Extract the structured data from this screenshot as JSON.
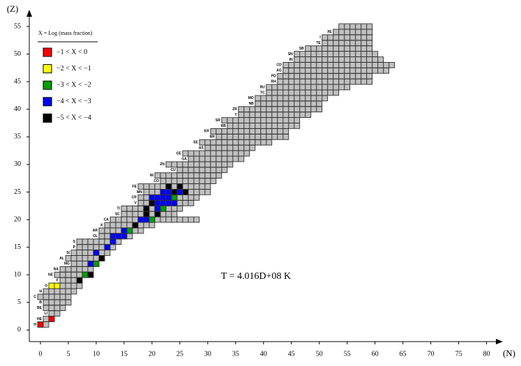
{
  "chart_data": {
    "type": "nuclide",
    "x_label": "(N)",
    "y_label": "(Z)",
    "annotation": "T = 4.016D+08 K",
    "xlim": [
      -2,
      82.8
    ],
    "ylim": [
      -2.1,
      57.9
    ],
    "xticks": [
      0,
      5,
      10,
      15,
      20,
      25,
      30,
      35,
      40,
      45,
      50,
      55,
      60,
      65,
      70,
      75,
      80
    ],
    "yticks": [
      0,
      5,
      10,
      15,
      20,
      25,
      30,
      35,
      40,
      45,
      50,
      55
    ],
    "cell_color": "#c0c0c0",
    "legend": {
      "title": "X = Log (mass fraction)",
      "entries": [
        {
          "label": "−1 < X < 0",
          "color": "#ff0000"
        },
        {
          "label": "−2 < X < −1",
          "color": "#ffff00"
        },
        {
          "label": "−3 < X < −2",
          "color": "#00a000"
        },
        {
          "label": "−4 < X < −3",
          "color": "#0000ff"
        },
        {
          "label": "−5 < X < −4",
          "color": "#000000"
        }
      ]
    },
    "rows": [
      [
        1,
        0,
        1
      ],
      [
        2,
        1,
        2
      ],
      [
        3,
        2,
        3
      ],
      [
        4,
        1,
        4
      ],
      [
        5,
        1,
        5
      ],
      [
        6,
        0,
        5
      ],
      [
        7,
        1,
        6
      ],
      [
        8,
        2,
        7
      ],
      [
        9,
        4,
        7
      ],
      [
        10,
        3,
        8
      ],
      [
        11,
        4,
        9
      ],
      [
        12,
        6,
        10
      ],
      [
        13,
        5,
        11
      ],
      [
        14,
        6,
        12
      ],
      [
        15,
        7,
        13
      ],
      [
        16,
        7,
        14
      ],
      [
        17,
        11,
        16
      ],
      [
        18,
        11,
        18
      ],
      [
        19,
        12,
        20
      ],
      [
        20,
        13,
        28
      ],
      [
        21,
        15,
        24
      ],
      [
        22,
        15,
        25
      ],
      [
        23,
        18,
        27
      ],
      [
        24,
        18,
        28
      ],
      [
        25,
        19,
        30
      ],
      [
        26,
        18,
        30
      ],
      [
        27,
        22,
        31
      ],
      [
        28,
        21,
        32
      ],
      [
        29,
        25,
        33
      ],
      [
        30,
        23,
        34
      ],
      [
        31,
        27,
        36
      ],
      [
        32,
        26,
        37
      ],
      [
        33,
        30,
        38
      ],
      [
        34,
        29,
        41
      ],
      [
        35,
        32,
        44
      ],
      [
        36,
        31,
        44
      ],
      [
        37,
        34,
        46
      ],
      [
        38,
        33,
        46
      ],
      [
        39,
        36,
        48
      ],
      [
        40,
        36,
        50
      ],
      [
        41,
        39,
        50
      ],
      [
        42,
        39,
        51
      ],
      [
        43,
        41,
        53
      ],
      [
        44,
        41,
        55
      ],
      [
        45,
        43,
        59
      ],
      [
        46,
        43,
        59
      ],
      [
        47,
        44,
        62
      ],
      [
        48,
        44,
        63
      ],
      [
        49,
        46,
        61
      ],
      [
        50,
        46,
        60
      ],
      [
        51,
        48,
        59
      ],
      [
        52,
        51,
        59
      ],
      [
        53,
        51,
        59
      ],
      [
        54,
        53,
        59
      ],
      [
        55,
        54,
        59
      ]
    ],
    "cells": [
      {
        "n": 0,
        "z": 1,
        "class": 0
      },
      {
        "n": 2,
        "z": 2,
        "class": 0
      },
      {
        "n": 2,
        "z": 8,
        "class": 1
      },
      {
        "n": 3,
        "z": 8,
        "class": 1
      },
      {
        "n": 8,
        "z": 10,
        "class": 2
      },
      {
        "n": 10,
        "z": 12,
        "class": 2
      },
      {
        "n": 16,
        "z": 18,
        "class": 2
      },
      {
        "n": 20,
        "z": 20,
        "class": 2
      },
      {
        "n": 22,
        "z": 22,
        "class": 2
      },
      {
        "n": 24,
        "z": 24,
        "class": 2
      },
      {
        "n": 9,
        "z": 12,
        "class": 3
      },
      {
        "n": 10,
        "z": 14,
        "class": 3
      },
      {
        "n": 12,
        "z": 15,
        "class": 3
      },
      {
        "n": 13,
        "z": 16,
        "class": 3
      },
      {
        "n": 14,
        "z": 17,
        "class": 3
      },
      {
        "n": 15,
        "z": 17,
        "class": 3
      },
      {
        "n": 15,
        "z": 18,
        "class": 3
      },
      {
        "n": 13,
        "z": 17,
        "class": 3
      },
      {
        "n": 18,
        "z": 20,
        "class": 3
      },
      {
        "n": 19,
        "z": 20,
        "class": 3
      },
      {
        "n": 21,
        "z": 22,
        "class": 3
      },
      {
        "n": 21,
        "z": 23,
        "class": 3
      },
      {
        "n": 22,
        "z": 23,
        "class": 3
      },
      {
        "n": 23,
        "z": 23,
        "class": 3
      },
      {
        "n": 20,
        "z": 24,
        "class": 3
      },
      {
        "n": 21,
        "z": 24,
        "class": 3
      },
      {
        "n": 22,
        "z": 24,
        "class": 3
      },
      {
        "n": 23,
        "z": 24,
        "class": 3
      },
      {
        "n": 22,
        "z": 25,
        "class": 3
      },
      {
        "n": 23,
        "z": 25,
        "class": 3
      },
      {
        "n": 25,
        "z": 25,
        "class": 3
      },
      {
        "n": 24,
        "z": 23,
        "class": 3
      },
      {
        "n": 9,
        "z": 10,
        "class": 4
      },
      {
        "n": 7,
        "z": 9,
        "class": 4
      },
      {
        "n": 11,
        "z": 13,
        "class": 4
      },
      {
        "n": 17,
        "z": 19,
        "class": 4
      },
      {
        "n": 19,
        "z": 22,
        "class": 4
      },
      {
        "n": 20,
        "z": 23,
        "class": 4
      },
      {
        "n": 23,
        "z": 26,
        "class": 4
      },
      {
        "n": 25,
        "z": 26,
        "class": 4
      },
      {
        "n": 26,
        "z": 25,
        "class": 4
      },
      {
        "n": 24,
        "z": 25,
        "class": 4
      },
      {
        "n": 19,
        "z": 21,
        "class": 4
      },
      {
        "n": 21,
        "z": 21,
        "class": 4
      }
    ],
    "elements": [
      {
        "symbol": "H",
        "z": 1
      },
      {
        "symbol": "HE",
        "z": 2
      },
      {
        "symbol": "LI",
        "z": 3
      },
      {
        "symbol": "BE",
        "z": 4
      },
      {
        "symbol": "B",
        "z": 5
      },
      {
        "symbol": "C",
        "z": 6
      },
      {
        "symbol": "N",
        "z": 7
      },
      {
        "symbol": "O",
        "z": 8
      },
      {
        "symbol": "F",
        "z": 9
      },
      {
        "symbol": "NE",
        "z": 10
      },
      {
        "symbol": "NA",
        "z": 11
      },
      {
        "symbol": "MG",
        "z": 12
      },
      {
        "symbol": "AL",
        "z": 13
      },
      {
        "symbol": "SI",
        "z": 14
      },
      {
        "symbol": "P",
        "z": 15
      },
      {
        "symbol": "S",
        "z": 16
      },
      {
        "symbol": "CL",
        "z": 17
      },
      {
        "symbol": "AR",
        "z": 18
      },
      {
        "symbol": "K",
        "z": 19
      },
      {
        "symbol": "CA",
        "z": 20
      },
      {
        "symbol": "SC",
        "z": 21
      },
      {
        "symbol": "TI",
        "z": 22
      },
      {
        "symbol": "V",
        "z": 23
      },
      {
        "symbol": "CR",
        "z": 24
      },
      {
        "symbol": "MN",
        "z": 25
      },
      {
        "symbol": "FE",
        "z": 26
      },
      {
        "symbol": "CO",
        "z": 27
      },
      {
        "symbol": "NI",
        "z": 28
      },
      {
        "symbol": "CU",
        "z": 29
      },
      {
        "symbol": "ZN",
        "z": 30
      },
      {
        "symbol": "GA",
        "z": 31
      },
      {
        "symbol": "GE",
        "z": 32
      },
      {
        "symbol": "AS",
        "z": 33
      },
      {
        "symbol": "SE",
        "z": 34
      },
      {
        "symbol": "BR",
        "z": 35
      },
      {
        "symbol": "KR",
        "z": 36
      },
      {
        "symbol": "RB",
        "z": 37
      },
      {
        "symbol": "SR",
        "z": 38
      },
      {
        "symbol": "Y",
        "z": 39
      },
      {
        "symbol": "ZR",
        "z": 40
      },
      {
        "symbol": "NB",
        "z": 41
      },
      {
        "symbol": "MO",
        "z": 42
      },
      {
        "symbol": "TC",
        "z": 43
      },
      {
        "symbol": "RU",
        "z": 44
      },
      {
        "symbol": "RH",
        "z": 45
      },
      {
        "symbol": "PD",
        "z": 46
      },
      {
        "symbol": "AG",
        "z": 47
      },
      {
        "symbol": "CD",
        "z": 48
      },
      {
        "symbol": "IN",
        "z": 49
      },
      {
        "symbol": "SN",
        "z": 50
      },
      {
        "symbol": "SB",
        "z": 51
      },
      {
        "symbol": "TE",
        "z": 52
      },
      {
        "symbol": "I",
        "z": 53
      },
      {
        "symbol": "XE",
        "z": 54
      }
    ]
  }
}
